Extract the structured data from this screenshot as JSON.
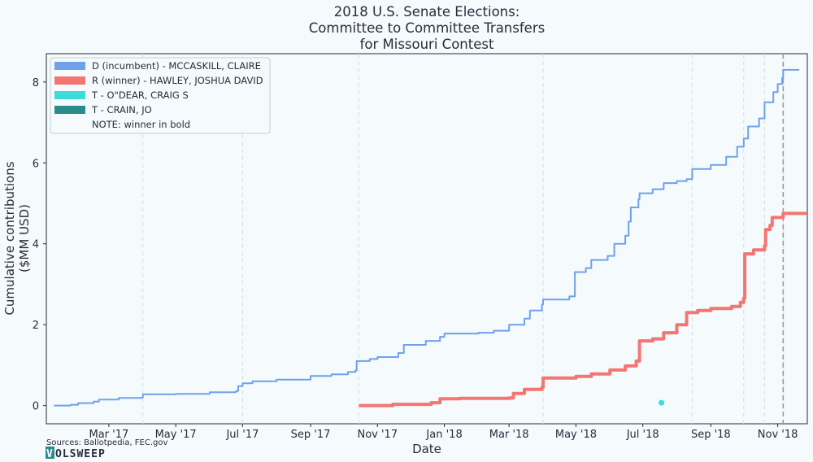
{
  "chart_data": {
    "type": "line",
    "title": [
      "2018 U.S. Senate Elections:",
      "Committee to Committee Transfers",
      "for Missouri Contest"
    ],
    "xlabel": "Date",
    "ylabel": [
      "Cumulative contributions",
      "($MM USD)"
    ],
    "xlim": [
      "2017-01-03",
      "2018-11-28"
    ],
    "ylim": [
      -0.45,
      8.7
    ],
    "x_ticks": [
      {
        "date": "2017-03-01",
        "label": "Mar '17"
      },
      {
        "date": "2017-05-01",
        "label": "May '17"
      },
      {
        "date": "2017-07-01",
        "label": "Jul '17"
      },
      {
        "date": "2017-09-01",
        "label": "Sep '17"
      },
      {
        "date": "2017-11-01",
        "label": "Nov '17"
      },
      {
        "date": "2018-01-01",
        "label": "Jan '18"
      },
      {
        "date": "2018-03-01",
        "label": "Mar '18"
      },
      {
        "date": "2018-05-01",
        "label": "May '18"
      },
      {
        "date": "2018-07-01",
        "label": "Jul '18"
      },
      {
        "date": "2018-09-01",
        "label": "Sep '18"
      },
      {
        "date": "2018-11-01",
        "label": "Nov '18"
      }
    ],
    "y_ticks": [
      0,
      2,
      4,
      6,
      8
    ],
    "grid": "vertical dashed",
    "reference_lines": [
      "2017-04-01",
      "2017-07-01",
      "2017-10-15",
      "2018-04-01",
      "2018-08-15",
      "2018-10-01",
      "2018-10-20",
      "2018-11-06"
    ],
    "election_day": "2018-11-06",
    "legend_position": "top-left",
    "legend_note": "NOTE: winner in bold",
    "series": [
      {
        "name": "D (incumbent) - MCCASKILL, CLAIRE",
        "color": "#6fa1ec",
        "bold": false,
        "points": [
          [
            "2017-01-10",
            0.0
          ],
          [
            "2017-01-25",
            0.02
          ],
          [
            "2017-02-01",
            0.06
          ],
          [
            "2017-02-15",
            0.1
          ],
          [
            "2017-02-20",
            0.15
          ],
          [
            "2017-03-10",
            0.19
          ],
          [
            "2017-03-31",
            0.2
          ],
          [
            "2017-04-01",
            0.28
          ],
          [
            "2017-05-01",
            0.29
          ],
          [
            "2017-06-01",
            0.33
          ],
          [
            "2017-06-25",
            0.36
          ],
          [
            "2017-06-27",
            0.48
          ],
          [
            "2017-07-01",
            0.55
          ],
          [
            "2017-07-10",
            0.6
          ],
          [
            "2017-08-01",
            0.64
          ],
          [
            "2017-09-01",
            0.73
          ],
          [
            "2017-09-20",
            0.77
          ],
          [
            "2017-10-05",
            0.83
          ],
          [
            "2017-10-12",
            0.87
          ],
          [
            "2017-10-13",
            1.1
          ],
          [
            "2017-10-25",
            1.15
          ],
          [
            "2017-11-01",
            1.2
          ],
          [
            "2017-11-20",
            1.3
          ],
          [
            "2017-11-25",
            1.5
          ],
          [
            "2017-12-15",
            1.6
          ],
          [
            "2017-12-28",
            1.7
          ],
          [
            "2018-01-01",
            1.78
          ],
          [
            "2018-02-01",
            1.8
          ],
          [
            "2018-02-15",
            1.85
          ],
          [
            "2018-03-01",
            2.0
          ],
          [
            "2018-03-15",
            2.15
          ],
          [
            "2018-03-20",
            2.35
          ],
          [
            "2018-03-31",
            2.5
          ],
          [
            "2018-04-01",
            2.62
          ],
          [
            "2018-04-25",
            2.7
          ],
          [
            "2018-04-30",
            3.3
          ],
          [
            "2018-05-10",
            3.4
          ],
          [
            "2018-05-15",
            3.6
          ],
          [
            "2018-05-30",
            3.7
          ],
          [
            "2018-06-05",
            4.0
          ],
          [
            "2018-06-15",
            4.2
          ],
          [
            "2018-06-18",
            4.55
          ],
          [
            "2018-06-20",
            4.9
          ],
          [
            "2018-06-27",
            5.1
          ],
          [
            "2018-06-28",
            5.25
          ],
          [
            "2018-07-10",
            5.35
          ],
          [
            "2018-07-20",
            5.5
          ],
          [
            "2018-08-01",
            5.55
          ],
          [
            "2018-08-10",
            5.6
          ],
          [
            "2018-08-15",
            5.85
          ],
          [
            "2018-09-01",
            5.95
          ],
          [
            "2018-09-15",
            6.15
          ],
          [
            "2018-09-25",
            6.4
          ],
          [
            "2018-10-01",
            6.6
          ],
          [
            "2018-10-05",
            6.9
          ],
          [
            "2018-10-15",
            7.1
          ],
          [
            "2018-10-20",
            7.5
          ],
          [
            "2018-10-28",
            7.75
          ],
          [
            "2018-11-01",
            7.95
          ],
          [
            "2018-11-05",
            8.1
          ],
          [
            "2018-11-06",
            8.3
          ],
          [
            "2018-11-20",
            8.32
          ]
        ]
      },
      {
        "name": "R (winner) - HAWLEY, JOSHUA DAVID",
        "color": "#f47673",
        "bold": true,
        "points": [
          [
            "2017-10-15",
            0.0
          ],
          [
            "2017-11-15",
            0.03
          ],
          [
            "2017-12-20",
            0.07
          ],
          [
            "2017-12-28",
            0.17
          ],
          [
            "2018-01-15",
            0.18
          ],
          [
            "2018-03-01",
            0.19
          ],
          [
            "2018-03-05",
            0.3
          ],
          [
            "2018-03-15",
            0.4
          ],
          [
            "2018-03-31",
            0.45
          ],
          [
            "2018-04-01",
            0.68
          ],
          [
            "2018-05-01",
            0.72
          ],
          [
            "2018-05-15",
            0.78
          ],
          [
            "2018-06-01",
            0.88
          ],
          [
            "2018-06-15",
            0.98
          ],
          [
            "2018-06-25",
            1.1
          ],
          [
            "2018-06-28",
            1.6
          ],
          [
            "2018-07-10",
            1.65
          ],
          [
            "2018-07-20",
            1.8
          ],
          [
            "2018-08-01",
            2.0
          ],
          [
            "2018-08-10",
            2.3
          ],
          [
            "2018-08-20",
            2.35
          ],
          [
            "2018-09-01",
            2.4
          ],
          [
            "2018-09-20",
            2.45
          ],
          [
            "2018-09-28",
            2.55
          ],
          [
            "2018-10-01",
            2.65
          ],
          [
            "2018-10-02",
            3.75
          ],
          [
            "2018-10-10",
            3.85
          ],
          [
            "2018-10-20",
            3.95
          ],
          [
            "2018-10-21",
            4.35
          ],
          [
            "2018-10-25",
            4.45
          ],
          [
            "2018-10-27",
            4.65
          ],
          [
            "2018-11-06",
            4.75
          ],
          [
            "2018-11-26",
            4.78
          ]
        ]
      },
      {
        "name": "T - O\"DEAR, CRAIG S",
        "color": "#3ddbd9",
        "bold": false,
        "points": [
          [
            "2018-07-18",
            0.07
          ]
        ]
      },
      {
        "name": "T - CRAIN, JO",
        "color": "#2a8c8a",
        "bold": false,
        "points": []
      }
    ]
  },
  "footer": {
    "source": "Sources: Ballotpedia, FEC.gov",
    "logo_mark": "V",
    "logo_rest": "OLSWEEP"
  }
}
